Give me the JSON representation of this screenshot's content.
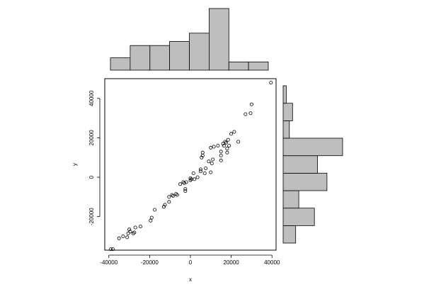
{
  "chart_data": [
    {
      "type": "scatter",
      "xlabel": "x",
      "ylabel": "y",
      "xlim": [
        -42000,
        42000
      ],
      "ylim": [
        -37000,
        50000
      ],
      "x_ticks": [
        -40000,
        -20000,
        0,
        20000,
        40000
      ],
      "y_ticks": [
        -20000,
        0,
        20000,
        40000
      ],
      "x_tick_labels": [
        "-40000",
        "-20000",
        "0",
        "20000",
        "40000"
      ],
      "y_tick_labels": [
        "-20000",
        "0",
        "20000",
        "40000"
      ],
      "points": [
        [
          -39000,
          -36500
        ],
        [
          -38000,
          -36500
        ],
        [
          -35000,
          -31000
        ],
        [
          -33000,
          -30000
        ],
        [
          -31000,
          -30500
        ],
        [
          -30500,
          -28500
        ],
        [
          -30000,
          -26500
        ],
        [
          -29500,
          -27500
        ],
        [
          -28000,
          -28500
        ],
        [
          -27500,
          -28000
        ],
        [
          -27000,
          -25500
        ],
        [
          -24500,
          -25000
        ],
        [
          -19500,
          -22000
        ],
        [
          -19000,
          -20500
        ],
        [
          -17500,
          -16500
        ],
        [
          -13000,
          -15000
        ],
        [
          -12500,
          -14000
        ],
        [
          -10500,
          -12500
        ],
        [
          -10500,
          -10000
        ],
        [
          -9000,
          -9000
        ],
        [
          -8500,
          -9500
        ],
        [
          -7000,
          -8500
        ],
        [
          -6500,
          -9000
        ],
        [
          -5000,
          -3500
        ],
        [
          -3500,
          -2500
        ],
        [
          -3000,
          -3000
        ],
        [
          -2500,
          -6000
        ],
        [
          -2500,
          -7000
        ],
        [
          -2000,
          -2500
        ],
        [
          0,
          -500
        ],
        [
          0,
          -1500
        ],
        [
          500,
          -1000
        ],
        [
          1500,
          2000
        ],
        [
          2000,
          -1000
        ],
        [
          3500,
          0
        ],
        [
          5000,
          4000
        ],
        [
          5000,
          3000
        ],
        [
          5500,
          10000
        ],
        [
          6000,
          12500
        ],
        [
          6000,
          11000
        ],
        [
          7000,
          2000
        ],
        [
          7500,
          4500
        ],
        [
          9000,
          8000
        ],
        [
          10000,
          2500
        ],
        [
          10000,
          15000
        ],
        [
          10500,
          7000
        ],
        [
          11000,
          9000
        ],
        [
          11500,
          15500
        ],
        [
          13500,
          16000
        ],
        [
          15000,
          8500
        ],
        [
          15000,
          11000
        ],
        [
          15000,
          13000
        ],
        [
          16000,
          17000
        ],
        [
          16500,
          16000
        ],
        [
          17000,
          18000
        ],
        [
          17500,
          17500
        ],
        [
          18000,
          14500
        ],
        [
          18000,
          12500
        ],
        [
          18500,
          19000
        ],
        [
          19000,
          16000
        ],
        [
          20000,
          22000
        ],
        [
          21500,
          23000
        ],
        [
          23500,
          18000
        ],
        [
          27000,
          32000
        ],
        [
          29500,
          32500
        ],
        [
          30000,
          37000
        ],
        [
          39500,
          48000
        ]
      ]
    },
    {
      "type": "bar",
      "orientation": "vertical",
      "bin_edges": [
        -40000,
        -30000,
        -20000,
        -10000,
        0,
        10000,
        20000,
        30000,
        40000
      ],
      "values": [
        3,
        6,
        6,
        7,
        9,
        15,
        2,
        2
      ]
    },
    {
      "type": "bar",
      "orientation": "horizontal",
      "bin_edges": [
        -40000,
        -30000,
        -20000,
        -10000,
        0,
        10000,
        20000,
        30000,
        40000,
        50000
      ],
      "values": [
        4,
        10,
        5,
        14,
        11,
        19,
        2,
        3,
        1
      ]
    }
  ]
}
